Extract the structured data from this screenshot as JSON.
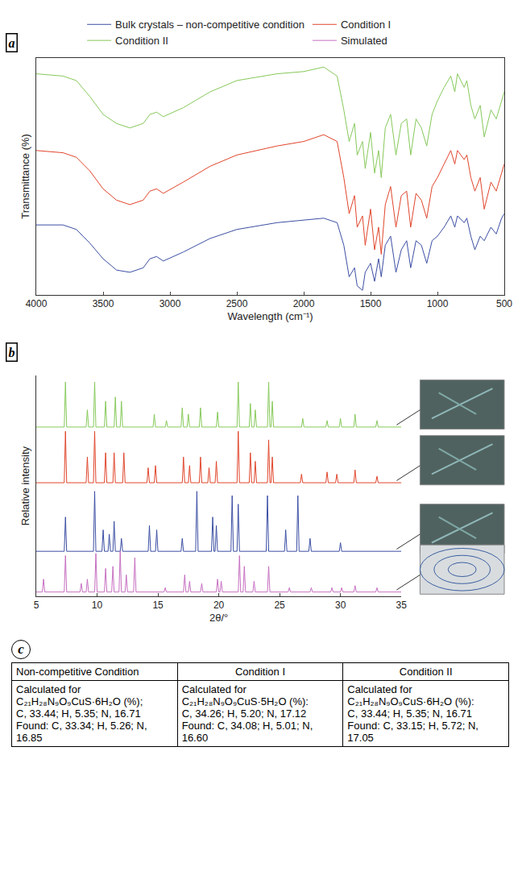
{
  "chart_data": [
    {
      "type": "line",
      "panel_label": "a",
      "legend": "top",
      "grid": false,
      "tick_labels": "x",
      "x_label": "Wavelength (cm⁻¹)",
      "y_label": "Transmittance (%)",
      "xlim": [
        4000,
        500
      ],
      "xticks": [
        4000,
        3500,
        3000,
        2500,
        2000,
        1500,
        1000,
        500
      ],
      "ylim": [
        0,
        105
      ],
      "x": [
        4000,
        3800,
        3700,
        3600,
        3500,
        3400,
        3300,
        3200,
        3150,
        3100,
        3050,
        2900,
        2700,
        2500,
        2200,
        2000,
        1850,
        1750,
        1700,
        1660,
        1620,
        1600,
        1560,
        1540,
        1500,
        1470,
        1440,
        1420,
        1390,
        1350,
        1310,
        1270,
        1230,
        1200,
        1160,
        1120,
        1080,
        1040,
        1000,
        950,
        900,
        870,
        850,
        800,
        780,
        750,
        720,
        680,
        650,
        600,
        560,
        520,
        500
      ],
      "series": [
        {
          "name": "Bulk crystals – non-competitive condition",
          "color": "#3b4ea3",
          "values": [
            31,
            31,
            29,
            23,
            16,
            11,
            10,
            12,
            16,
            17,
            15,
            19,
            25,
            29,
            32,
            33,
            34,
            32,
            22,
            8,
            12,
            4,
            2,
            10,
            14,
            6,
            16,
            8,
            22,
            26,
            10,
            20,
            24,
            12,
            24,
            22,
            14,
            24,
            26,
            30,
            35,
            30,
            35,
            32,
            34,
            26,
            20,
            26,
            24,
            30,
            27,
            34,
            36
          ]
        },
        {
          "name": "Condition I",
          "color": "#e0452b",
          "values": [
            64,
            63,
            61,
            55,
            47,
            42,
            40,
            42,
            46,
            47,
            45,
            50,
            57,
            62,
            66,
            68,
            71,
            68,
            52,
            36,
            44,
            30,
            35,
            22,
            38,
            20,
            30,
            18,
            40,
            48,
            30,
            44,
            46,
            30,
            45,
            42,
            34,
            48,
            52,
            58,
            64,
            58,
            64,
            60,
            62,
            52,
            46,
            52,
            38,
            50,
            46,
            54,
            58
          ]
        },
        {
          "name": "Condition II",
          "color": "#86c95a",
          "values": [
            98,
            97,
            95,
            88,
            80,
            76,
            74,
            76,
            80,
            81,
            79,
            83,
            90,
            95,
            98,
            99,
            101,
            97,
            82,
            68,
            76,
            62,
            68,
            56,
            72,
            54,
            64,
            52,
            74,
            80,
            62,
            76,
            78,
            62,
            78,
            74,
            66,
            80,
            86,
            92,
            97,
            90,
            98,
            92,
            95,
            84,
            78,
            84,
            70,
            82,
            78,
            86,
            90
          ]
        }
      ]
    },
    {
      "type": "line",
      "panel_label": "b",
      "grid": false,
      "tick_labels": "x",
      "x_label": "2θ/°",
      "y_label": "Relative intensity",
      "xlim": [
        5,
        35
      ],
      "xticks": [
        5,
        10,
        15,
        20,
        25,
        30,
        35
      ],
      "ylim": [
        0,
        103
      ],
      "series": [
        {
          "name": "Bulk crystals – non-competitive condition",
          "color": "#3b4ea3",
          "x": [
            5,
            7.3,
            7.4,
            7.5,
            9.7,
            9.8,
            9.9,
            10.4,
            10.5,
            10.6,
            10.9,
            11.0,
            11.1,
            11.3,
            11.4,
            11.5,
            11.9,
            12.0,
            12.1,
            14.2,
            14.3,
            14.4,
            14.8,
            14.9,
            15.0,
            16.9,
            17.0,
            17.1,
            18.1,
            18.2,
            18.3,
            19.4,
            19.5,
            19.6,
            19.7,
            19.8,
            19.9,
            21.0,
            21.1,
            21.2,
            21.5,
            21.6,
            21.7,
            23.9,
            24.0,
            24.1,
            25.4,
            25.5,
            25.6,
            26.4,
            26.5,
            26.6,
            27.4,
            27.5,
            27.6,
            29.9,
            30.0,
            30.1,
            35
          ],
          "values": [
            21,
            21,
            37,
            21,
            21,
            49,
            21,
            21,
            31,
            21,
            21,
            29,
            21,
            21,
            35,
            21,
            21,
            27,
            21,
            21,
            33,
            21,
            21,
            31,
            21,
            21,
            27,
            21,
            21,
            49,
            21,
            21,
            37,
            21,
            21,
            33,
            21,
            21,
            47,
            21,
            21,
            43,
            21,
            21,
            47,
            21,
            21,
            31,
            21,
            21,
            47,
            21,
            21,
            27,
            21,
            21,
            25,
            21,
            21
          ]
        },
        {
          "name": "Condition I",
          "color": "#e0452b",
          "x": [
            5,
            7.3,
            7.4,
            7.5,
            9.1,
            9.2,
            9.3,
            9.7,
            9.8,
            9.9,
            10.6,
            10.7,
            10.8,
            11.3,
            11.4,
            11.5,
            12.1,
            12.2,
            12.3,
            14.1,
            14.2,
            14.3,
            14.7,
            14.8,
            14.9,
            17.0,
            17.1,
            17.2,
            17.5,
            17.6,
            17.7,
            18.4,
            18.5,
            18.6,
            19.1,
            19.2,
            19.3,
            19.7,
            19.8,
            19.9,
            21.5,
            21.6,
            21.7,
            22.5,
            22.6,
            22.7,
            22.9,
            23.0,
            23.1,
            24.0,
            24.1,
            24.2,
            24.3,
            24.4,
            24.5,
            26.7,
            26.8,
            26.9,
            28.8,
            28.9,
            29.0,
            29.6,
            29.7,
            29.8,
            31.1,
            31.2,
            31.3,
            32.9,
            33.0,
            33.1,
            35
          ],
          "values": [
            53,
            53,
            77,
            53,
            53,
            65,
            53,
            53,
            77,
            53,
            53,
            67,
            53,
            53,
            67,
            53,
            53,
            67,
            53,
            53,
            60,
            53,
            53,
            61,
            53,
            53,
            65,
            53,
            53,
            61,
            53,
            53,
            65,
            53,
            53,
            60,
            53,
            53,
            63,
            53,
            53,
            77,
            53,
            53,
            67,
            53,
            53,
            63,
            53,
            53,
            73,
            53,
            53,
            65,
            53,
            53,
            57,
            53,
            53,
            58,
            53,
            53,
            57,
            53,
            53,
            59,
            53,
            53,
            56,
            53,
            53
          ]
        },
        {
          "name": "Condition II",
          "color": "#86c95a",
          "x": [
            5,
            7.3,
            7.4,
            7.5,
            9.1,
            9.2,
            9.3,
            9.7,
            9.8,
            9.9,
            10.6,
            10.7,
            10.8,
            11.4,
            11.5,
            11.6,
            11.9,
            12.0,
            12.1,
            14.6,
            14.7,
            14.8,
            15.6,
            15.7,
            15.8,
            16.9,
            17.0,
            17.1,
            17.4,
            17.5,
            17.6,
            18.4,
            18.5,
            18.6,
            19.8,
            19.9,
            20.0,
            21.5,
            21.6,
            21.7,
            22.5,
            22.6,
            22.7,
            22.9,
            23.0,
            23.1,
            24.0,
            24.1,
            24.2,
            24.3,
            24.4,
            24.5,
            26.8,
            26.9,
            27.0,
            28.8,
            28.9,
            29.0,
            29.9,
            30.0,
            30.1,
            31.1,
            31.2,
            31.3,
            32.9,
            33.0,
            33.1,
            35
          ],
          "values": [
            79,
            79,
            100,
            79,
            79,
            87,
            79,
            79,
            100,
            79,
            79,
            91,
            79,
            79,
            93,
            79,
            79,
            91,
            79,
            79,
            85,
            79,
            79,
            82,
            79,
            79,
            88,
            79,
            79,
            85,
            79,
            79,
            88,
            79,
            79,
            86,
            79,
            79,
            100,
            79,
            79,
            90,
            79,
            79,
            87,
            79,
            79,
            100,
            79,
            79,
            91,
            79,
            79,
            83,
            79,
            79,
            82,
            79,
            79,
            83,
            79,
            79,
            85,
            79,
            79,
            82,
            79,
            79
          ]
        },
        {
          "name": "Simulated",
          "color": "#c66fc0",
          "x": [
            5,
            5.5,
            5.6,
            5.7,
            7.3,
            7.4,
            7.5,
            8.6,
            8.7,
            8.8,
            9.1,
            9.2,
            9.3,
            9.8,
            9.9,
            10.0,
            10.6,
            10.7,
            10.8,
            11.2,
            11.3,
            11.4,
            11.8,
            11.9,
            12.0,
            12.3,
            12.4,
            12.5,
            13.0,
            13.1,
            13.2,
            15.5,
            15.6,
            15.7,
            17.1,
            17.2,
            17.3,
            17.5,
            17.6,
            17.7,
            18.5,
            18.6,
            18.7,
            19.8,
            19.9,
            20.0,
            20.1,
            20.2,
            20.3,
            21.6,
            21.7,
            21.8,
            22.0,
            22.1,
            22.2,
            22.8,
            22.9,
            23.0,
            24.0,
            24.1,
            24.2,
            25.7,
            25.8,
            25.9,
            27.5,
            27.6,
            27.7,
            29.2,
            29.3,
            29.4,
            30.0,
            30.1,
            30.2,
            31.1,
            31.2,
            31.3,
            32.9,
            33.0,
            33.1,
            35
          ],
          "values": [
            2,
            2,
            8,
            2,
            2,
            19,
            2,
            2,
            6,
            2,
            2,
            8,
            2,
            2,
            20,
            2,
            2,
            13,
            2,
            2,
            14,
            2,
            2,
            21,
            2,
            2,
            10,
            2,
            2,
            18,
            2,
            2,
            4,
            2,
            2,
            10,
            2,
            2,
            7,
            2,
            2,
            6,
            2,
            2,
            8,
            2,
            2,
            7,
            2,
            2,
            19,
            2,
            2,
            14,
            2,
            2,
            7,
            2,
            2,
            14,
            2,
            2,
            4,
            2,
            2,
            4,
            2,
            2,
            4,
            2,
            2,
            4,
            2,
            2,
            5,
            2,
            2,
            4,
            2,
            2
          ]
        }
      ]
    }
  ],
  "table": {
    "panel_label": "c",
    "header": [
      "Non-competitive Condition",
      "Condition I",
      "Condition II"
    ],
    "rows": [
      [
        [
          "Calculated for C₂₁H₂₈N₉O₉CuS·6H₂O (%);",
          "C, 33.44; H, 5.35; N, 16.71",
          "Found: C, 33.34; H, 5.26; N, 16.85"
        ],
        [
          "Calculated for C₂₁H₂₈N₉O₉CuS·5H₂O (%):",
          "C, 34.26; H, 5.20; N, 17.12",
          "Found: C, 34.08; H, 5.01; N, 16.60"
        ],
        [
          "Calculated for C₂₁H₂₈N₉O₉CuS·6H₂O (%):",
          "C, 33.44; H, 5.35; N, 16.71",
          "Found: C, 33.15; H, 5.72; N, 17.05"
        ]
      ]
    ]
  }
}
